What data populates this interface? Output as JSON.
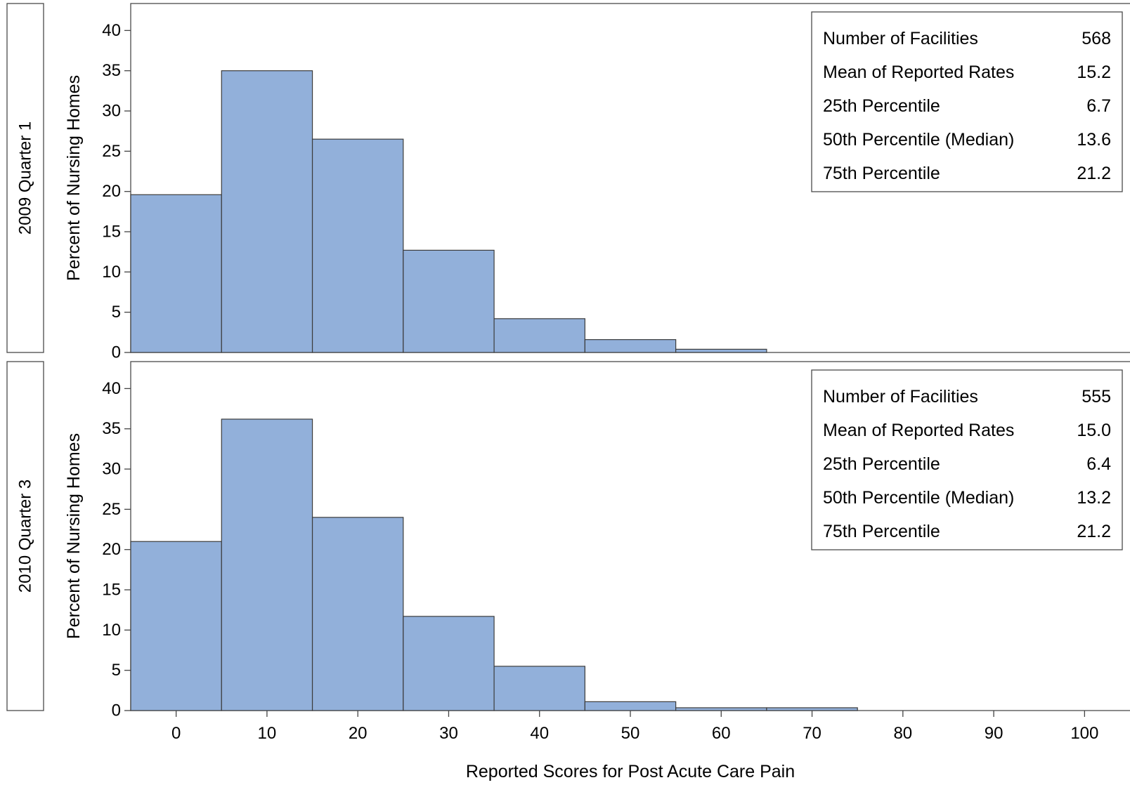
{
  "chart_data": {
    "type": "bar",
    "xlabel": "Reported Scores for Post Acute Care Pain",
    "ylabel": "Percent of Nursing Homes",
    "xlim": [
      -5,
      105
    ],
    "ylim": [
      0,
      43
    ],
    "x_ticks": [
      0,
      10,
      20,
      30,
      40,
      50,
      60,
      70,
      80,
      90,
      100
    ],
    "y_ticks": [
      0,
      5,
      10,
      15,
      20,
      25,
      30,
      35,
      40
    ],
    "bin_width": 10,
    "panels": [
      {
        "label": "2009 Quarter 1",
        "bins": [
          {
            "x0": -5,
            "x1": 5,
            "value": 19.6
          },
          {
            "x0": 5,
            "x1": 15,
            "value": 35.0
          },
          {
            "x0": 15,
            "x1": 25,
            "value": 26.5
          },
          {
            "x0": 25,
            "x1": 35,
            "value": 12.7
          },
          {
            "x0": 35,
            "x1": 45,
            "value": 4.2
          },
          {
            "x0": 45,
            "x1": 55,
            "value": 1.6
          },
          {
            "x0": 55,
            "x1": 65,
            "value": 0.4
          }
        ],
        "stats": [
          {
            "label": "Number of Facilities",
            "value": "568"
          },
          {
            "label": "Mean of Reported Rates",
            "value": "15.2"
          },
          {
            "label": "25th Percentile",
            "value": "6.7"
          },
          {
            "label": "50th Percentile (Median)",
            "value": "13.6"
          },
          {
            "label": "75th Percentile",
            "value": "21.2"
          }
        ]
      },
      {
        "label": "2010 Quarter 3",
        "bins": [
          {
            "x0": -5,
            "x1": 5,
            "value": 21.0
          },
          {
            "x0": 5,
            "x1": 15,
            "value": 36.2
          },
          {
            "x0": 15,
            "x1": 25,
            "value": 24.0
          },
          {
            "x0": 25,
            "x1": 35,
            "value": 11.7
          },
          {
            "x0": 35,
            "x1": 45,
            "value": 5.5
          },
          {
            "x0": 45,
            "x1": 55,
            "value": 1.1
          },
          {
            "x0": 55,
            "x1": 65,
            "value": 0.35
          },
          {
            "x0": 65,
            "x1": 75,
            "value": 0.35
          }
        ],
        "stats": [
          {
            "label": "Number of Facilities",
            "value": "555"
          },
          {
            "label": "Mean of Reported Rates",
            "value": "15.0"
          },
          {
            "label": "25th Percentile",
            "value": "6.4"
          },
          {
            "label": "50th Percentile (Median)",
            "value": "13.2"
          },
          {
            "label": "75th Percentile",
            "value": "21.2"
          }
        ]
      }
    ]
  }
}
